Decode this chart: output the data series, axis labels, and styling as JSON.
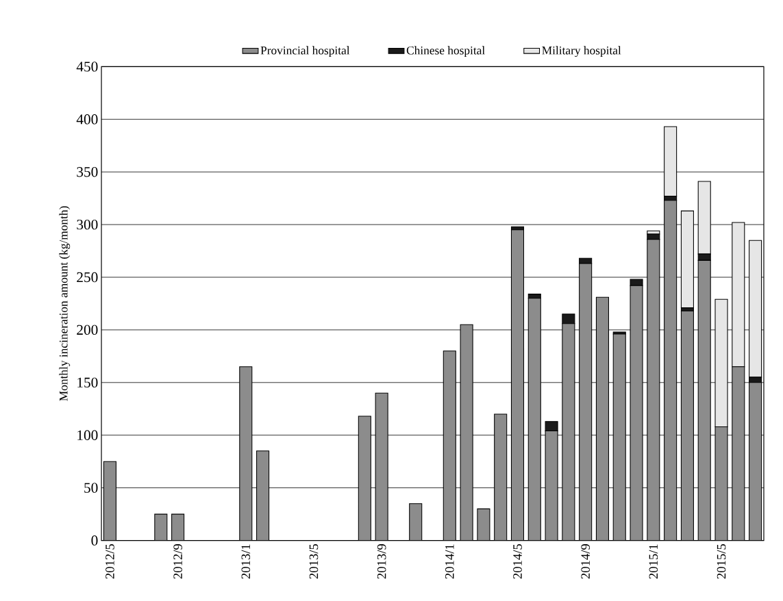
{
  "chart_data": {
    "type": "bar",
    "stacked": true,
    "ylabel": "Monthly incineration amount (kg/month)",
    "categories": [
      "2012/5",
      null,
      null,
      null,
      "2012/9",
      null,
      null,
      null,
      "2013/1",
      null,
      null,
      null,
      "2013/5",
      null,
      null,
      null,
      "2013/9",
      null,
      null,
      null,
      "2014/1",
      null,
      null,
      null,
      "2014/5",
      null,
      null,
      null,
      "2014/9",
      null,
      null,
      null,
      "2015/1",
      null,
      null,
      null,
      "2015/5",
      null,
      null
    ],
    "series": [
      {
        "name": "Provincial hospital",
        "color": "#8c8c8c",
        "values": [
          75,
          null,
          null,
          25,
          25,
          null,
          null,
          null,
          165,
          85,
          null,
          null,
          null,
          null,
          null,
          118,
          140,
          null,
          35,
          null,
          180,
          205,
          30,
          120,
          295,
          230,
          104,
          206,
          263,
          231,
          196,
          242,
          286,
          323,
          218,
          266,
          108,
          165,
          150
        ]
      },
      {
        "name": "Chinese hospital",
        "color": "#1a1a1a",
        "values": [
          null,
          null,
          null,
          null,
          null,
          null,
          null,
          null,
          null,
          null,
          null,
          null,
          null,
          null,
          null,
          null,
          null,
          null,
          null,
          null,
          null,
          null,
          null,
          null,
          3,
          4,
          9,
          9,
          5,
          null,
          2,
          6,
          5,
          4,
          3,
          6,
          null,
          null,
          5
        ]
      },
      {
        "name": "Military hospital",
        "color": "#e6e6e6",
        "values": [
          null,
          null,
          null,
          null,
          null,
          null,
          null,
          null,
          null,
          null,
          null,
          null,
          null,
          null,
          null,
          null,
          null,
          null,
          null,
          null,
          null,
          null,
          null,
          null,
          null,
          null,
          null,
          null,
          null,
          null,
          null,
          null,
          3,
          66,
          92,
          69,
          121,
          137,
          130
        ]
      }
    ],
    "ylim": [
      0,
      450
    ],
    "yticks": [
      0,
      50,
      100,
      150,
      200,
      250,
      300,
      350,
      400,
      450
    ],
    "grid": "y",
    "legend": "top"
  }
}
